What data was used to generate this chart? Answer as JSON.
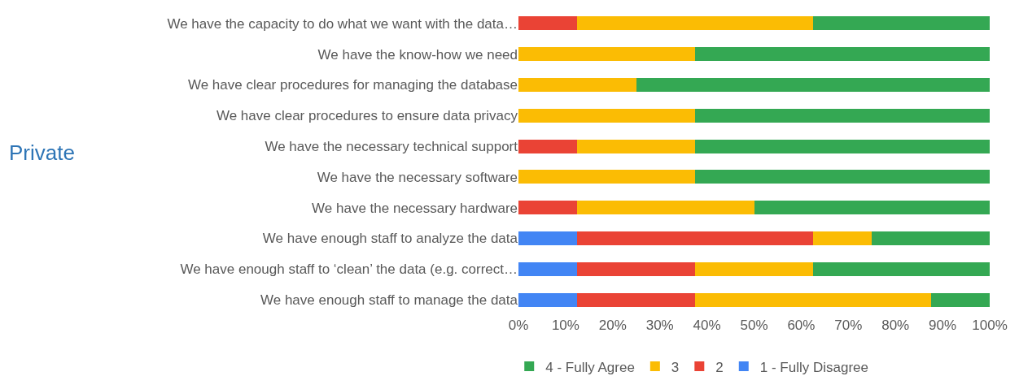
{
  "chart_data": {
    "type": "bar",
    "orientation": "horizontal",
    "stacked": true,
    "categories": [
      "We have the capacity to do what we want with the data…",
      "We have the know-how we need",
      "We have clear procedures for managing the database",
      "We have clear procedures to ensure data privacy",
      "We have the necessary technical support",
      "We have the necessary software",
      "We have the necessary hardware",
      "We have enough staff to analyze the data",
      "We have enough staff to ‘clean’ the data (e.g. correct…",
      "We have enough staff to manage the data"
    ],
    "series": [
      {
        "name": "1 - Fully Disagree",
        "color": "#4285f4",
        "values": [
          0,
          0,
          0,
          0,
          0,
          0,
          0,
          12.5,
          12.5,
          12.5
        ]
      },
      {
        "name": "2",
        "color": "#ea4335",
        "values": [
          12.5,
          0,
          0,
          0,
          12.5,
          0,
          12.5,
          50,
          25,
          25
        ]
      },
      {
        "name": "3",
        "color": "#fbbc04",
        "values": [
          50,
          37.5,
          25,
          37.5,
          25,
          37.5,
          37.5,
          12.5,
          25,
          50
        ]
      },
      {
        "name": "4 - Fully Agree",
        "color": "#34a853",
        "values": [
          37.5,
          62.5,
          75,
          62.5,
          62.5,
          62.5,
          50,
          25,
          37.5,
          12.5
        ]
      }
    ],
    "xlim": [
      0,
      100
    ],
    "xticks": [
      {
        "value": 0,
        "label": "0%"
      },
      {
        "value": 10,
        "label": "10%"
      },
      {
        "value": 20,
        "label": "20%"
      },
      {
        "value": 30,
        "label": "30%"
      },
      {
        "value": 40,
        "label": "40%"
      },
      {
        "value": 50,
        "label": "50%"
      },
      {
        "value": 60,
        "label": "60%"
      },
      {
        "value": 70,
        "label": "70%"
      },
      {
        "value": 80,
        "label": "80%"
      },
      {
        "value": 90,
        "label": "90%"
      },
      {
        "value": 100,
        "label": "100%"
      }
    ],
    "annotations": [
      "Private"
    ],
    "grid": false,
    "legend": "bottom"
  }
}
